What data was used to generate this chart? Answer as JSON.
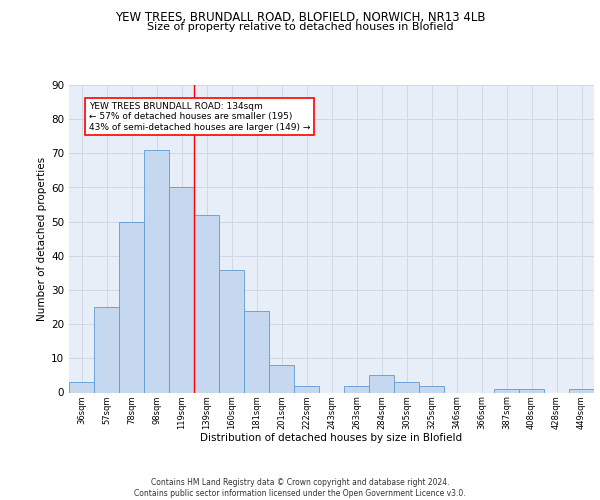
{
  "title_line1": "YEW TREES, BRUNDALL ROAD, BLOFIELD, NORWICH, NR13 4LB",
  "title_line2": "Size of property relative to detached houses in Blofield",
  "xlabel": "Distribution of detached houses by size in Blofield",
  "ylabel": "Number of detached properties",
  "categories": [
    "36sqm",
    "57sqm",
    "78sqm",
    "98sqm",
    "119sqm",
    "139sqm",
    "160sqm",
    "181sqm",
    "201sqm",
    "222sqm",
    "243sqm",
    "263sqm",
    "284sqm",
    "305sqm",
    "325sqm",
    "346sqm",
    "366sqm",
    "387sqm",
    "408sqm",
    "428sqm",
    "449sqm"
  ],
  "values": [
    3,
    25,
    50,
    71,
    60,
    52,
    36,
    24,
    8,
    2,
    0,
    2,
    5,
    3,
    2,
    0,
    0,
    1,
    1,
    0,
    1
  ],
  "bar_color": "#c5d8f0",
  "bar_edge_color": "#5b9bd5",
  "grid_color": "#d0d8e8",
  "background_color": "#e8eef8",
  "vline_x": 4.5,
  "vline_color": "red",
  "annotation_text": "YEW TREES BRUNDALL ROAD: 134sqm\n← 57% of detached houses are smaller (195)\n43% of semi-detached houses are larger (149) →",
  "annotation_box_color": "white",
  "annotation_box_edge_color": "red",
  "footer": "Contains HM Land Registry data © Crown copyright and database right 2024.\nContains public sector information licensed under the Open Government Licence v3.0.",
  "ylim": [
    0,
    90
  ],
  "yticks": [
    0,
    10,
    20,
    30,
    40,
    50,
    60,
    70,
    80,
    90
  ]
}
